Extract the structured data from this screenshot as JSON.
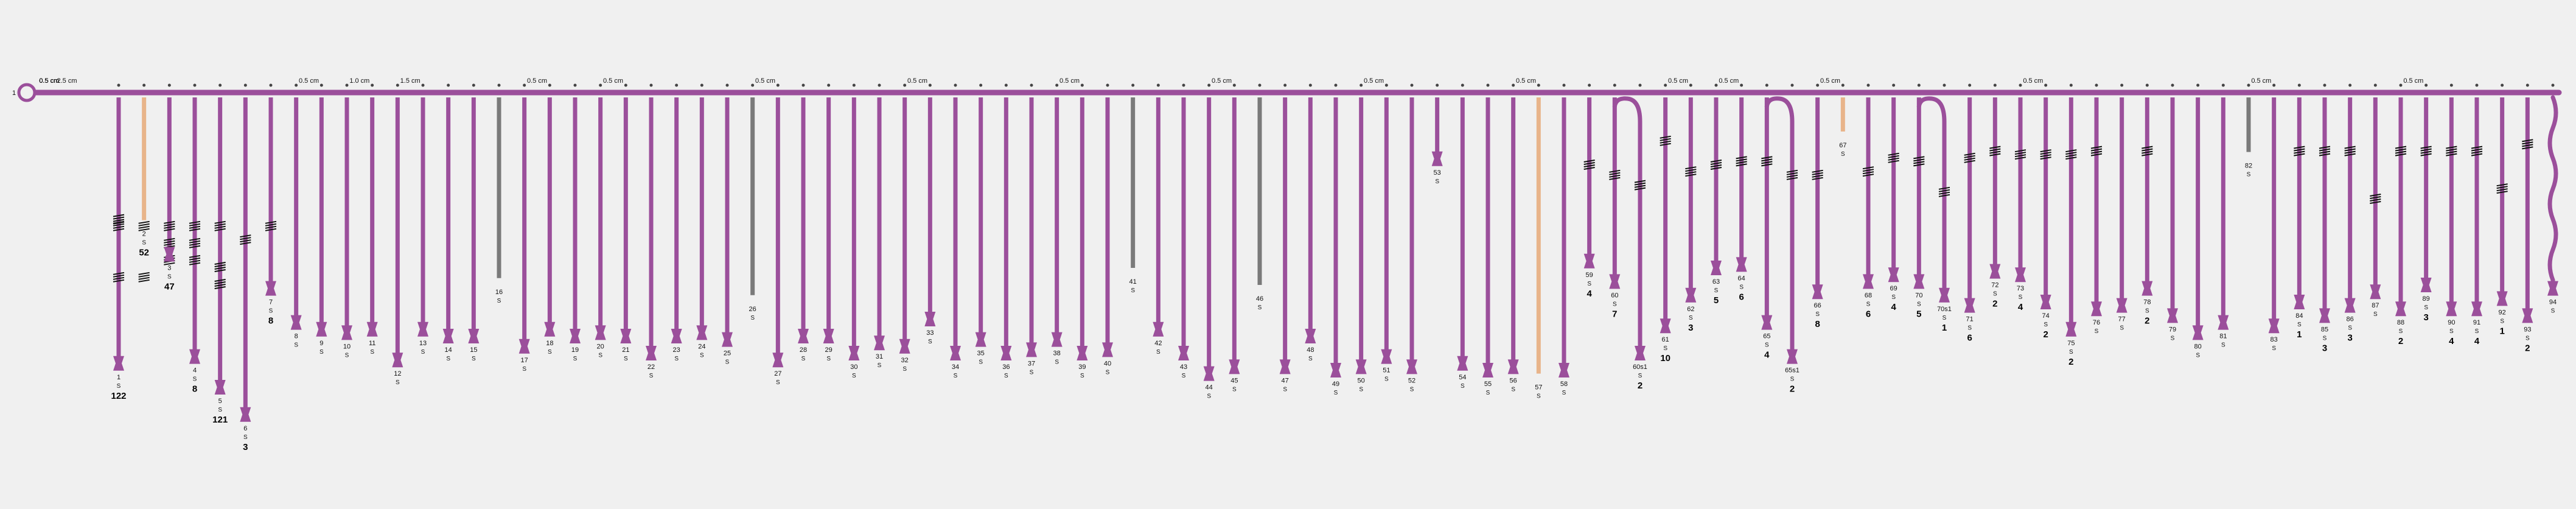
{
  "primary": {
    "label": "1",
    "color": "#9b4f9b"
  },
  "colors": {
    "purple": "#9b4f9b",
    "tan": "#e8b48a",
    "gray": "#7a7a7a",
    "knot": "#111111"
  },
  "spacings": [
    {
      "after": 0,
      "label": "2.5 cm"
    },
    {
      "after": 7,
      "label": "0.5 cm"
    },
    {
      "after": 9,
      "label": "1.0 cm"
    },
    {
      "after": 11,
      "label": "1.5 cm"
    },
    {
      "after": 16,
      "label": "0.5 cm"
    },
    {
      "after": 19,
      "label": "0.5 cm"
    },
    {
      "after": 25,
      "label": "0.5 cm"
    },
    {
      "after": 31,
      "label": "0.5 cm"
    },
    {
      "after": 37,
      "label": "0.5 cm"
    },
    {
      "after": 43,
      "label": "0.5 cm"
    },
    {
      "after": 49,
      "label": "0.5 cm"
    },
    {
      "after": 55,
      "label": "0.5 cm"
    },
    {
      "after": 61,
      "label": "0.5 cm"
    },
    {
      "after": 63,
      "label": "0.5 cm"
    },
    {
      "after": 67,
      "label": "0.5 cm"
    },
    {
      "after": 75,
      "label": "0.5 cm"
    },
    {
      "after": 84,
      "label": "0.5 cm"
    },
    {
      "after": 90,
      "label": "0.5 cm"
    },
    {
      "after": 99,
      "label": "0.5 cm"
    },
    {
      "after": 105,
      "label": "0.5 cm"
    },
    {
      "after": 111,
      "label": "0.5 cm"
    },
    {
      "after": 119,
      "label": "0.5 cm"
    }
  ],
  "cords": [
    {
      "num": "1",
      "len": 0.78,
      "color": "purple",
      "value": "122",
      "knots": [
        0.38,
        0.36,
        0.53
      ]
    },
    {
      "num": "2",
      "len": 0.36,
      "color": "tan",
      "value": "52",
      "knots": [
        0.38,
        0.53
      ]
    },
    {
      "num": "3",
      "len": 0.46,
      "color": "purple",
      "value": "47",
      "knots": [
        0.38,
        0.43,
        0.48
      ]
    },
    {
      "num": "4",
      "len": 0.76,
      "color": "purple",
      "value": "8",
      "knots": [
        0.38,
        0.43,
        0.48
      ]
    },
    {
      "num": "5",
      "len": 0.85,
      "color": "purple",
      "value": "121",
      "knots": [
        0.38,
        0.5,
        0.55
      ]
    },
    {
      "num": "6",
      "len": 0.93,
      "color": "purple",
      "value": "3",
      "knots": [
        0.42
      ]
    },
    {
      "num": "7",
      "len": 0.56,
      "color": "purple",
      "value": "8",
      "knots": [
        0.38
      ]
    },
    {
      "num": "8",
      "len": 0.66,
      "color": "purple",
      "value": "",
      "knots": []
    },
    {
      "num": "9",
      "len": 0.68,
      "color": "purple",
      "value": "",
      "knots": []
    },
    {
      "num": "10",
      "len": 0.69,
      "color": "purple",
      "value": "",
      "knots": []
    },
    {
      "num": "11",
      "len": 0.68,
      "color": "purple",
      "value": "",
      "knots": []
    },
    {
      "num": "12",
      "len": 0.77,
      "color": "purple",
      "value": "",
      "knots": []
    },
    {
      "num": "13",
      "len": 0.68,
      "color": "purple",
      "value": "",
      "knots": []
    },
    {
      "num": "14",
      "len": 0.7,
      "color": "purple",
      "value": "",
      "knots": []
    },
    {
      "num": "15",
      "len": 0.7,
      "color": "purple",
      "value": "",
      "knots": []
    },
    {
      "num": "16",
      "len": 0.53,
      "color": "gray",
      "value": "",
      "knots": []
    },
    {
      "num": "17",
      "len": 0.73,
      "color": "purple",
      "value": "",
      "knots": []
    },
    {
      "num": "18",
      "len": 0.68,
      "color": "purple",
      "value": "",
      "knots": []
    },
    {
      "num": "19",
      "len": 0.7,
      "color": "purple",
      "value": "",
      "knots": []
    },
    {
      "num": "20",
      "len": 0.69,
      "color": "purple",
      "value": "",
      "knots": []
    },
    {
      "num": "21",
      "len": 0.7,
      "color": "purple",
      "value": "",
      "knots": []
    },
    {
      "num": "22",
      "len": 0.75,
      "color": "purple",
      "value": "",
      "knots": []
    },
    {
      "num": "23",
      "len": 0.7,
      "color": "purple",
      "value": "",
      "knots": []
    },
    {
      "num": "24",
      "len": 0.69,
      "color": "purple",
      "value": "",
      "knots": []
    },
    {
      "num": "25",
      "len": 0.71,
      "color": "purple",
      "value": "",
      "knots": []
    },
    {
      "num": "26",
      "len": 0.58,
      "color": "gray",
      "value": "",
      "knots": []
    },
    {
      "num": "27",
      "len": 0.77,
      "color": "purple",
      "value": "",
      "knots": []
    },
    {
      "num": "28",
      "len": 0.7,
      "color": "purple",
      "value": "",
      "knots": []
    },
    {
      "num": "29",
      "len": 0.7,
      "color": "purple",
      "value": "",
      "knots": []
    },
    {
      "num": "30",
      "len": 0.75,
      "color": "purple",
      "value": "",
      "knots": []
    },
    {
      "num": "31",
      "len": 0.72,
      "color": "purple",
      "value": "",
      "knots": []
    },
    {
      "num": "32",
      "len": 0.73,
      "color": "purple",
      "value": "",
      "knots": []
    },
    {
      "num": "33",
      "len": 0.65,
      "color": "purple",
      "value": "",
      "knots": []
    },
    {
      "num": "34",
      "len": 0.75,
      "color": "purple",
      "value": "",
      "knots": []
    },
    {
      "num": "35",
      "len": 0.71,
      "color": "purple",
      "value": "",
      "knots": []
    },
    {
      "num": "36",
      "len": 0.75,
      "color": "purple",
      "value": "",
      "knots": []
    },
    {
      "num": "37",
      "len": 0.74,
      "color": "purple",
      "value": "",
      "knots": []
    },
    {
      "num": "38",
      "len": 0.71,
      "color": "purple",
      "value": "",
      "knots": []
    },
    {
      "num": "39",
      "len": 0.75,
      "color": "purple",
      "value": "",
      "knots": []
    },
    {
      "num": "40",
      "len": 0.74,
      "color": "purple",
      "value": "",
      "knots": []
    },
    {
      "num": "41",
      "len": 0.5,
      "color": "gray",
      "value": "",
      "knots": []
    },
    {
      "num": "42",
      "len": 0.68,
      "color": "purple",
      "value": "",
      "knots": []
    },
    {
      "num": "43",
      "len": 0.75,
      "color": "purple",
      "value": "",
      "knots": []
    },
    {
      "num": "44",
      "len": 0.81,
      "color": "purple",
      "value": "",
      "knots": []
    },
    {
      "num": "45",
      "len": 0.79,
      "color": "purple",
      "value": "",
      "knots": []
    },
    {
      "num": "46",
      "len": 0.55,
      "color": "gray",
      "value": "",
      "knots": []
    },
    {
      "num": "47",
      "len": 0.79,
      "color": "purple",
      "value": "",
      "knots": []
    },
    {
      "num": "48",
      "len": 0.7,
      "color": "purple",
      "value": "",
      "knots": []
    },
    {
      "num": "49",
      "len": 0.8,
      "color": "purple",
      "value": "",
      "knots": []
    },
    {
      "num": "50",
      "len": 0.79,
      "color": "purple",
      "value": "",
      "knots": []
    },
    {
      "num": "51",
      "len": 0.76,
      "color": "purple",
      "value": "",
      "knots": []
    },
    {
      "num": "52",
      "len": 0.79,
      "color": "purple",
      "value": "",
      "knots": []
    },
    {
      "num": "53",
      "len": 0.18,
      "color": "purple",
      "value": "",
      "knots": []
    },
    {
      "num": "54",
      "len": 0.78,
      "color": "purple",
      "value": "",
      "knots": []
    },
    {
      "num": "55",
      "len": 0.8,
      "color": "purple",
      "value": "",
      "knots": []
    },
    {
      "num": "56",
      "len": 0.79,
      "color": "purple",
      "value": "",
      "knots": []
    },
    {
      "num": "57",
      "len": 0.81,
      "color": "tan",
      "value": "",
      "knots": []
    },
    {
      "num": "58",
      "len": 0.8,
      "color": "purple",
      "value": "",
      "knots": []
    },
    {
      "num": "59",
      "len": 0.48,
      "color": "purple",
      "value": "4",
      "knots": [
        0.2
      ]
    },
    {
      "num": "60",
      "len": 0.54,
      "color": "purple",
      "value": "7",
      "knots": [
        0.23
      ]
    },
    {
      "num": "60s1",
      "len": 0.75,
      "color": "purple",
      "value": "2",
      "knots": [
        0.26
      ],
      "sub": true
    },
    {
      "num": "61",
      "len": 0.67,
      "color": "purple",
      "value": "10",
      "knots": [
        0.13
      ]
    },
    {
      "num": "62",
      "len": 0.58,
      "color": "purple",
      "value": "3",
      "knots": [
        0.22
      ]
    },
    {
      "num": "63",
      "len": 0.5,
      "color": "purple",
      "value": "5",
      "knots": [
        0.2
      ]
    },
    {
      "num": "64",
      "len": 0.49,
      "color": "purple",
      "value": "6",
      "knots": [
        0.19
      ]
    },
    {
      "num": "65",
      "len": 0.66,
      "color": "purple",
      "value": "4",
      "knots": [
        0.19
      ]
    },
    {
      "num": "65s1",
      "len": 0.76,
      "color": "purple",
      "value": "2",
      "knots": [
        0.23
      ],
      "sub": true
    },
    {
      "num": "66",
      "len": 0.57,
      "color": "purple",
      "value": "8",
      "knots": [
        0.23
      ]
    },
    {
      "num": "67",
      "len": 0.1,
      "color": "tan",
      "value": "",
      "knots": []
    },
    {
      "num": "68",
      "len": 0.54,
      "color": "purple",
      "value": "6",
      "knots": [
        0.22
      ]
    },
    {
      "num": "69",
      "len": 0.52,
      "color": "purple",
      "value": "4",
      "knots": [
        0.18
      ]
    },
    {
      "num": "70",
      "len": 0.54,
      "color": "purple",
      "value": "5",
      "knots": [
        0.19
      ]
    },
    {
      "num": "70s1",
      "len": 0.58,
      "color": "purple",
      "value": "1",
      "knots": [
        0.28
      ],
      "sub": true
    },
    {
      "num": "71",
      "len": 0.61,
      "color": "purple",
      "value": "6",
      "knots": [
        0.18
      ]
    },
    {
      "num": "72",
      "len": 0.51,
      "color": "purple",
      "value": "2",
      "knots": [
        0.16
      ]
    },
    {
      "num": "73",
      "len": 0.52,
      "color": "purple",
      "value": "4",
      "knots": [
        0.17
      ]
    },
    {
      "num": "74",
      "len": 0.6,
      "color": "purple",
      "value": "2",
      "knots": [
        0.17
      ]
    },
    {
      "num": "75",
      "len": 0.68,
      "color": "purple",
      "value": "2",
      "knots": [
        0.17
      ]
    },
    {
      "num": "76",
      "len": 0.62,
      "color": "purple",
      "value": "",
      "knots": [
        0.16
      ]
    },
    {
      "num": "77",
      "len": 0.61,
      "color": "purple",
      "value": "",
      "knots": []
    },
    {
      "num": "78",
      "len": 0.56,
      "color": "purple",
      "value": "2",
      "knots": [
        0.16
      ]
    },
    {
      "num": "79",
      "len": 0.64,
      "color": "purple",
      "value": "",
      "knots": []
    },
    {
      "num": "80",
      "len": 0.69,
      "color": "purple",
      "value": "",
      "knots": []
    },
    {
      "num": "81",
      "len": 0.66,
      "color": "purple",
      "value": "",
      "knots": []
    },
    {
      "num": "82",
      "len": 0.16,
      "color": "gray",
      "value": "",
      "knots": []
    },
    {
      "num": "83",
      "len": 0.67,
      "color": "purple",
      "value": "",
      "knots": []
    },
    {
      "num": "84",
      "len": 0.6,
      "color": "purple",
      "value": "1",
      "knots": [
        0.16
      ]
    },
    {
      "num": "85",
      "len": 0.64,
      "color": "purple",
      "value": "3",
      "knots": [
        0.16
      ]
    },
    {
      "num": "86",
      "len": 0.61,
      "color": "purple",
      "value": "3",
      "knots": [
        0.16
      ]
    },
    {
      "num": "87",
      "len": 0.57,
      "color": "purple",
      "value": "",
      "knots": [
        0.3
      ]
    },
    {
      "num": "88",
      "len": 0.62,
      "color": "purple",
      "value": "2",
      "knots": [
        0.16
      ]
    },
    {
      "num": "89",
      "len": 0.55,
      "color": "purple",
      "value": "3",
      "knots": [
        0.16
      ]
    },
    {
      "num": "90",
      "len": 0.62,
      "color": "purple",
      "value": "4",
      "knots": [
        0.16
      ]
    },
    {
      "num": "91",
      "len": 0.62,
      "color": "purple",
      "value": "4",
      "knots": [
        0.16
      ]
    },
    {
      "num": "92",
      "len": 0.59,
      "color": "purple",
      "value": "1",
      "knots": [
        0.27
      ]
    },
    {
      "num": "93",
      "len": 0.64,
      "color": "purple",
      "value": "2",
      "knots": [
        0.14
      ]
    },
    {
      "num": "94",
      "len": 0.56,
      "color": "purple",
      "value": "",
      "knots": [],
      "wavy": true
    }
  ]
}
